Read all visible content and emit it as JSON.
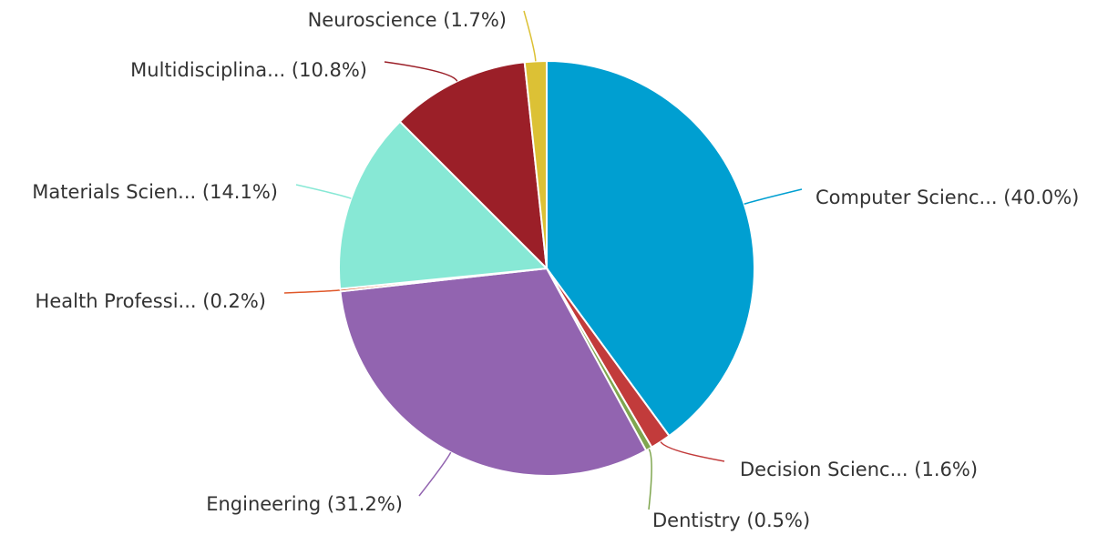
{
  "chart_data": {
    "type": "pie",
    "categories": [
      "Computer Scienc...",
      "Decision Scienc...",
      "Dentistry",
      "Engineering",
      "Health Professi...",
      "Materials Scien...",
      "Multidisciplina...",
      "Neuroscience"
    ],
    "values": [
      40.0,
      1.6,
      0.5,
      31.2,
      0.2,
      14.1,
      10.8,
      1.7
    ],
    "value_labels": [
      "(40.0%)",
      "(1.6%)",
      "(0.5%)",
      "(31.2%)",
      "(0.2%)",
      "(14.1%)",
      "(10.8%)",
      "(1.7%)"
    ],
    "colors": [
      "#009fd1",
      "#c23b3b",
      "#7fa64f",
      "#9264b0",
      "#e0582a",
      "#87e8d5",
      "#9b1f28",
      "#dcc135"
    ]
  }
}
